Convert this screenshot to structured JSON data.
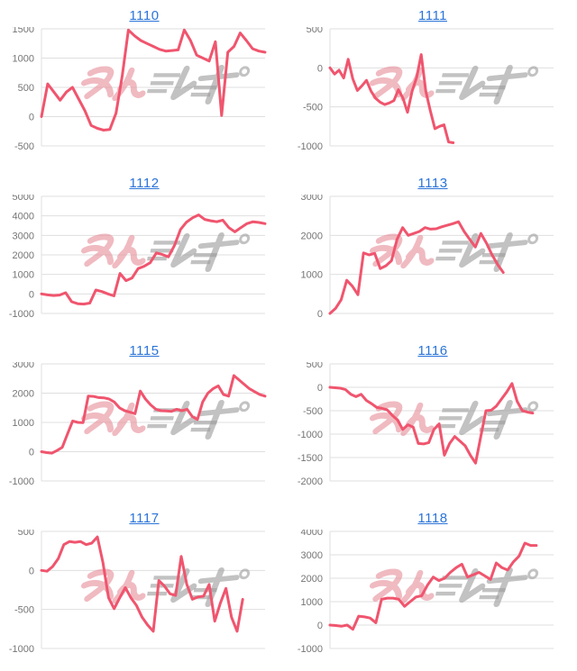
{
  "style": {
    "line_color": "#f0556e",
    "grid_color": "#dfdfdf",
    "axis_color": "#dfdfdf",
    "tick_label_color": "#757575",
    "title_link_color": "#2b74d9",
    "watermark_pink": "#e8909c",
    "watermark_gray": "#9e9e9e",
    "background": "#ffffff"
  },
  "watermark": {
    "name": "minrepo-logo",
    "text_pink": "みん",
    "text_gray": "レポ"
  },
  "chart_data": [
    {
      "type": "line",
      "title": "1110",
      "ylim": [
        -500,
        1500
      ],
      "yticks": [
        1500,
        1000,
        500,
        0,
        -500
      ],
      "total_slots": 37,
      "values": [
        0,
        560,
        420,
        280,
        420,
        500,
        300,
        100,
        -150,
        -200,
        -230,
        -220,
        60,
        700,
        1480,
        1380,
        1300,
        1250,
        1200,
        1150,
        1120,
        1130,
        1140,
        1480,
        1300,
        1050,
        1000,
        950,
        1280,
        20,
        1100,
        1200,
        1430,
        1300,
        1160,
        1120,
        1100
      ]
    },
    {
      "type": "line",
      "title": "1111",
      "ylim": [
        -1000,
        500
      ],
      "yticks": [
        500,
        0,
        -500,
        -1000
      ],
      "total_slots": 50,
      "values": [
        0,
        -80,
        -30,
        -130,
        110,
        -140,
        -290,
        -230,
        -160,
        -300,
        -390,
        -440,
        -470,
        -450,
        -420,
        -280,
        -390,
        -570,
        -300,
        -120,
        170,
        -300,
        -550,
        -780,
        -750,
        -730,
        -950,
        -960
      ]
    },
    {
      "type": "line",
      "title": "1112",
      "ylim": [
        -1000,
        5000
      ],
      "yticks": [
        5000,
        4000,
        3000,
        2000,
        1000,
        0,
        -1000
      ],
      "total_slots": 38,
      "values": [
        0,
        -50,
        -80,
        -60,
        60,
        -400,
        -500,
        -520,
        -470,
        200,
        120,
        0,
        -100,
        1050,
        680,
        820,
        1300,
        1420,
        1600,
        2100,
        2020,
        1900,
        2480,
        3300,
        3680,
        3900,
        4050,
        3820,
        3750,
        3700,
        3780,
        3400,
        3180,
        3400,
        3600,
        3700,
        3660,
        3600
      ]
    },
    {
      "type": "line",
      "title": "1113",
      "ylim": [
        0,
        3000
      ],
      "yticks": [
        3000,
        2000,
        1000,
        0
      ],
      "total_slots": 41,
      "values": [
        0,
        130,
        350,
        850,
        700,
        480,
        1550,
        1500,
        1540,
        1150,
        1220,
        1350,
        1900,
        2200,
        2000,
        2050,
        2100,
        2200,
        2160,
        2170,
        2220,
        2260,
        2300,
        2350,
        2100,
        1900,
        1700,
        2050,
        1800,
        1500,
        1250,
        1050
      ]
    },
    {
      "type": "line",
      "title": "1115",
      "ylim": [
        -1000,
        3000
      ],
      "yticks": [
        3000,
        2000,
        1000,
        0,
        -1000
      ],
      "total_slots": 44,
      "values": [
        0,
        -30,
        -50,
        40,
        150,
        600,
        1050,
        1000,
        990,
        1900,
        1890,
        1850,
        1840,
        1800,
        1700,
        1500,
        1400,
        1350,
        1300,
        2070,
        1800,
        1600,
        1450,
        1400,
        1390,
        1380,
        1450,
        1400,
        1450,
        1200,
        1100,
        1700,
        2000,
        2150,
        2250,
        1950,
        1900,
        2600,
        2450,
        2300,
        2150,
        2050,
        1950,
        1900
      ]
    },
    {
      "type": "line",
      "title": "1116",
      "ylim": [
        -2000,
        500
      ],
      "yticks": [
        500,
        0,
        -500,
        -1000,
        -1500,
        -2000
      ],
      "total_slots": 44,
      "values": [
        0,
        -10,
        -20,
        -50,
        -150,
        -200,
        -150,
        -280,
        -350,
        -430,
        -450,
        -480,
        -600,
        -700,
        -900,
        -800,
        -850,
        -1200,
        -1210,
        -1180,
        -900,
        -780,
        -1450,
        -1200,
        -1050,
        -1150,
        -1250,
        -1450,
        -1620,
        -1050,
        -500,
        -490,
        -400,
        -250,
        -100,
        80,
        -300,
        -500,
        -530,
        -550
      ]
    },
    {
      "type": "line",
      "title": "1117",
      "ylim": [
        -1000,
        500
      ],
      "yticks": [
        500,
        0,
        -500,
        -1000
      ],
      "total_slots": 41,
      "values": [
        0,
        -10,
        50,
        150,
        330,
        370,
        360,
        370,
        330,
        350,
        430,
        100,
        -350,
        -490,
        -350,
        -220,
        -350,
        -450,
        -600,
        -700,
        -780,
        -130,
        -200,
        -300,
        -320,
        180,
        -180,
        -370,
        -340,
        -330,
        -180,
        -650,
        -420,
        -230,
        -600,
        -780,
        -370
      ]
    },
    {
      "type": "line",
      "title": "1118",
      "ylim": [
        -1000,
        4000
      ],
      "yticks": [
        4000,
        3000,
        2000,
        1000,
        0,
        -1000
      ],
      "total_slots": 40,
      "values": [
        0,
        -20,
        -50,
        0,
        -180,
        380,
        350,
        300,
        100,
        1100,
        1150,
        1150,
        1100,
        800,
        1000,
        1200,
        1250,
        1700,
        2050,
        1900,
        2000,
        2250,
        2450,
        2600,
        2050,
        2150,
        2250,
        2100,
        1950,
        2650,
        2450,
        2350,
        2700,
        2950,
        3500,
        3400,
        3400
      ]
    }
  ]
}
